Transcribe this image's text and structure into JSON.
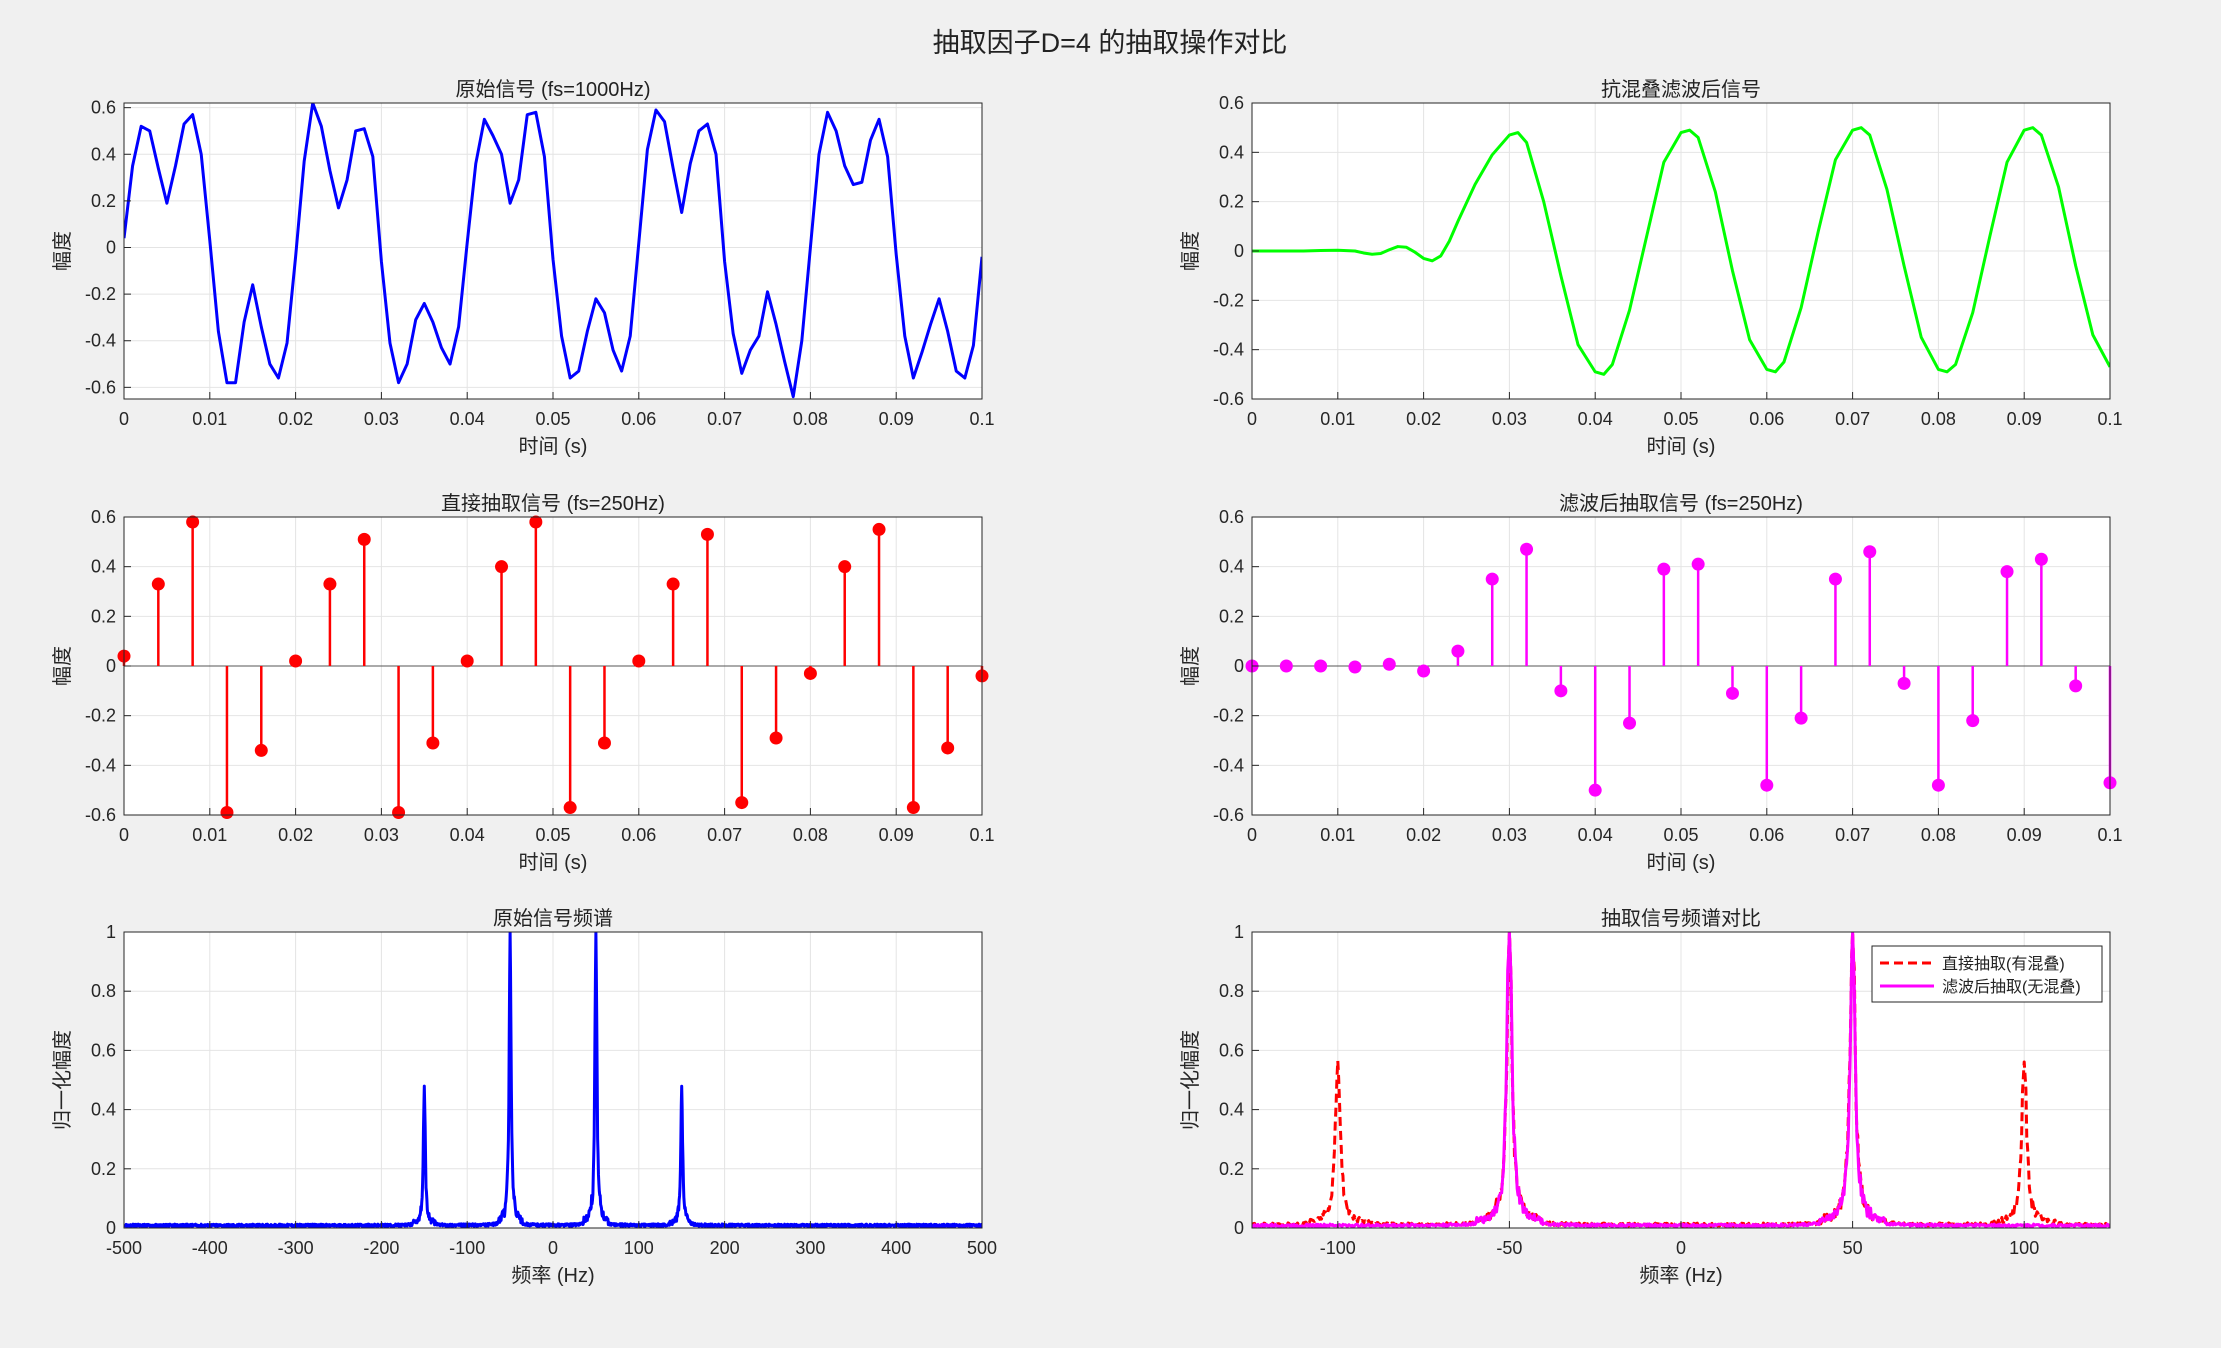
{
  "figure": {
    "title": "抽取因子D=4 的抽取操作对比"
  },
  "chart_data": [
    {
      "id": "p1",
      "type": "line",
      "title": "原始信号 (fs=1000Hz)",
      "xlabel": "时间 (s)",
      "ylabel": "幅度",
      "xlim": [
        0,
        0.1
      ],
      "ylim": [
        -0.65,
        0.62
      ],
      "xticks": [
        0,
        0.01,
        0.02,
        0.03,
        0.04,
        0.05,
        0.06,
        0.07,
        0.08,
        0.09,
        0.1
      ],
      "xticklabels": [
        "0",
        "0.01",
        "0.02",
        "0.03",
        "0.04",
        "0.05",
        "0.06",
        "0.07",
        "0.08",
        "0.09",
        "0.1"
      ],
      "yticks": [
        -0.6,
        -0.4,
        -0.2,
        0,
        0.2,
        0.4,
        0.6
      ],
      "yticklabels": [
        "-0.6",
        "-0.4",
        "-0.2",
        "0",
        "0.2",
        "0.4",
        "0.6"
      ],
      "grid": true,
      "series": [
        {
          "color": "#0000ff",
          "x": [
            0,
            0.001,
            0.002,
            0.003,
            0.004,
            0.005,
            0.006,
            0.007,
            0.008,
            0.009,
            0.01,
            0.011,
            0.012,
            0.013,
            0.014,
            0.015,
            0.016,
            0.017,
            0.018,
            0.019,
            0.02,
            0.021,
            0.022,
            0.023,
            0.024,
            0.025,
            0.026,
            0.027,
            0.028,
            0.029,
            0.03,
            0.031,
            0.032,
            0.033,
            0.034,
            0.035,
            0.036,
            0.037,
            0.038,
            0.039,
            0.04,
            0.041,
            0.042,
            0.043,
            0.044,
            0.045,
            0.046,
            0.047,
            0.048,
            0.049,
            0.05,
            0.051,
            0.052,
            0.053,
            0.054,
            0.055,
            0.056,
            0.057,
            0.058,
            0.059,
            0.06,
            0.061,
            0.062,
            0.063,
            0.064,
            0.065,
            0.066,
            0.067,
            0.068,
            0.069,
            0.07,
            0.071,
            0.072,
            0.073,
            0.074,
            0.075,
            0.076,
            0.077,
            0.078,
            0.079,
            0.08,
            0.081,
            0.082,
            0.083,
            0.084,
            0.085,
            0.086,
            0.087,
            0.088,
            0.089,
            0.09,
            0.091,
            0.092,
            0.093,
            0.094,
            0.095,
            0.096,
            0.097,
            0.098,
            0.099,
            0.1
          ],
          "y": [
            0.04,
            0.35,
            0.52,
            0.5,
            0.34,
            0.19,
            0.35,
            0.53,
            0.57,
            0.4,
            0.03,
            -0.36,
            -0.58,
            -0.58,
            -0.32,
            -0.16,
            -0.34,
            -0.5,
            -0.56,
            -0.41,
            -0.04,
            0.37,
            0.62,
            0.52,
            0.33,
            0.17,
            0.29,
            0.5,
            0.51,
            0.39,
            -0.06,
            -0.41,
            -0.58,
            -0.5,
            -0.31,
            -0.24,
            -0.32,
            -0.43,
            -0.5,
            -0.34,
            0.02,
            0.36,
            0.55,
            0.48,
            0.4,
            0.19,
            0.29,
            0.57,
            0.58,
            0.39,
            -0.05,
            -0.38,
            -0.56,
            -0.53,
            -0.36,
            -0.22,
            -0.28,
            -0.44,
            -0.53,
            -0.38,
            0.02,
            0.42,
            0.59,
            0.54,
            0.34,
            0.15,
            0.36,
            0.5,
            0.53,
            0.4,
            -0.06,
            -0.37,
            -0.54,
            -0.44,
            -0.38,
            -0.19,
            -0.33,
            -0.49,
            -0.64,
            -0.4,
            0.0,
            0.4,
            0.58,
            0.5,
            0.35,
            0.27,
            0.28,
            0.46,
            0.55,
            0.39,
            -0.03,
            -0.38,
            -0.56,
            -0.45,
            -0.33,
            -0.22,
            -0.36,
            -0.53,
            -0.56,
            -0.42,
            -0.04
          ]
        }
      ]
    },
    {
      "id": "p2",
      "type": "line",
      "title": "抗混叠滤波后信号",
      "xlabel": "时间 (s)",
      "ylabel": "幅度",
      "xlim": [
        0,
        0.1
      ],
      "ylim": [
        -0.6,
        0.6
      ],
      "xticks": [
        0,
        0.01,
        0.02,
        0.03,
        0.04,
        0.05,
        0.06,
        0.07,
        0.08,
        0.09,
        0.1
      ],
      "xticklabels": [
        "0",
        "0.01",
        "0.02",
        "0.03",
        "0.04",
        "0.05",
        "0.06",
        "0.07",
        "0.08",
        "0.09",
        "0.1"
      ],
      "yticks": [
        -0.6,
        -0.4,
        -0.2,
        0,
        0.2,
        0.4,
        0.6
      ],
      "yticklabels": [
        "-0.6",
        "-0.4",
        "-0.2",
        "0",
        "0.2",
        "0.4",
        "0.6"
      ],
      "grid": true,
      "series": [
        {
          "color": "#00ff00",
          "x": [
            0,
            0.002,
            0.004,
            0.006,
            0.008,
            0.01,
            0.012,
            0.013,
            0.014,
            0.015,
            0.016,
            0.017,
            0.018,
            0.019,
            0.02,
            0.021,
            0.022,
            0.023,
            0.024,
            0.026,
            0.028,
            0.03,
            0.031,
            0.032,
            0.034,
            0.036,
            0.038,
            0.04,
            0.041,
            0.042,
            0.044,
            0.046,
            0.048,
            0.05,
            0.051,
            0.052,
            0.054,
            0.056,
            0.058,
            0.06,
            0.061,
            0.062,
            0.064,
            0.066,
            0.068,
            0.07,
            0.071,
            0.072,
            0.074,
            0.076,
            0.078,
            0.08,
            0.081,
            0.082,
            0.084,
            0.086,
            0.088,
            0.09,
            0.091,
            0.092,
            0.094,
            0.096,
            0.098,
            0.1
          ],
          "y": [
            0.0,
            0.0,
            0.0,
            0.0,
            0.002,
            0.003,
            0.0,
            -0.008,
            -0.013,
            -0.01,
            0.005,
            0.018,
            0.015,
            -0.005,
            -0.03,
            -0.04,
            -0.02,
            0.04,
            0.12,
            0.27,
            0.39,
            0.47,
            0.48,
            0.44,
            0.2,
            -0.1,
            -0.38,
            -0.49,
            -0.5,
            -0.46,
            -0.24,
            0.06,
            0.36,
            0.48,
            0.49,
            0.46,
            0.24,
            -0.08,
            -0.36,
            -0.48,
            -0.49,
            -0.45,
            -0.23,
            0.08,
            0.37,
            0.49,
            0.5,
            0.47,
            0.25,
            -0.06,
            -0.35,
            -0.48,
            -0.49,
            -0.46,
            -0.25,
            0.06,
            0.36,
            0.49,
            0.5,
            0.47,
            0.26,
            -0.06,
            -0.34,
            -0.47
          ]
        }
      ]
    },
    {
      "id": "p3",
      "type": "stem",
      "title": "直接抽取信号 (fs=250Hz)",
      "xlabel": "时间 (s)",
      "ylabel": "幅度",
      "xlim": [
        0,
        0.1
      ],
      "ylim": [
        -0.6,
        0.6
      ],
      "xticks": [
        0,
        0.01,
        0.02,
        0.03,
        0.04,
        0.05,
        0.06,
        0.07,
        0.08,
        0.09,
        0.1
      ],
      "xticklabels": [
        "0",
        "0.01",
        "0.02",
        "0.03",
        "0.04",
        "0.05",
        "0.06",
        "0.07",
        "0.08",
        "0.09",
        "0.1"
      ],
      "yticks": [
        -0.6,
        -0.4,
        -0.2,
        0,
        0.2,
        0.4,
        0.6
      ],
      "yticklabels": [
        "-0.6",
        "-0.4",
        "-0.2",
        "0",
        "0.2",
        "0.4",
        "0.6"
      ],
      "grid": true,
      "series": [
        {
          "color": "#ff0000",
          "x": [
            0,
            0.004,
            0.008,
            0.012,
            0.016,
            0.02,
            0.024,
            0.028,
            0.032,
            0.036,
            0.04,
            0.044,
            0.048,
            0.052,
            0.056,
            0.06,
            0.064,
            0.068,
            0.072,
            0.076,
            0.08,
            0.084,
            0.088,
            0.092,
            0.096,
            0.1
          ],
          "y": [
            0.04,
            0.33,
            0.58,
            -0.59,
            -0.34,
            0.02,
            0.33,
            0.51,
            -0.59,
            -0.31,
            0.02,
            0.4,
            0.58,
            -0.57,
            -0.31,
            0.02,
            0.33,
            0.53,
            -0.55,
            -0.29,
            -0.03,
            0.4,
            0.55,
            -0.57,
            -0.33,
            -0.04
          ]
        }
      ]
    },
    {
      "id": "p4",
      "type": "stem",
      "title": "滤波后抽取信号 (fs=250Hz)",
      "xlabel": "时间 (s)",
      "ylabel": "幅度",
      "xlim": [
        0,
        0.1
      ],
      "ylim": [
        -0.6,
        0.6
      ],
      "xticks": [
        0,
        0.01,
        0.02,
        0.03,
        0.04,
        0.05,
        0.06,
        0.07,
        0.08,
        0.09,
        0.1
      ],
      "xticklabels": [
        "0",
        "0.01",
        "0.02",
        "0.03",
        "0.04",
        "0.05",
        "0.06",
        "0.07",
        "0.08",
        "0.09",
        "0.1"
      ],
      "yticks": [
        -0.6,
        -0.4,
        -0.2,
        0,
        0.2,
        0.4,
        0.6
      ],
      "yticklabels": [
        "-0.6",
        "-0.4",
        "-0.2",
        "0",
        "0.2",
        "0.4",
        "0.6"
      ],
      "grid": true,
      "series": [
        {
          "color": "#ff00ff",
          "x": [
            0,
            0.004,
            0.008,
            0.012,
            0.016,
            0.02,
            0.024,
            0.028,
            0.032,
            0.036,
            0.04,
            0.044,
            0.048,
            0.052,
            0.056,
            0.06,
            0.064,
            0.068,
            0.072,
            0.076,
            0.08,
            0.084,
            0.088,
            0.092,
            0.096,
            0.1
          ],
          "y": [
            0.0,
            0.0,
            0.0,
            -0.004,
            0.007,
            -0.02,
            0.06,
            0.35,
            0.47,
            -0.1,
            -0.5,
            -0.23,
            0.39,
            0.41,
            -0.11,
            -0.48,
            -0.21,
            0.35,
            0.46,
            -0.07,
            -0.48,
            -0.22,
            0.38,
            0.43,
            -0.08,
            -0.47
          ]
        }
      ]
    },
    {
      "id": "p5",
      "type": "line",
      "title": "原始信号频谱",
      "xlabel": "频率 (Hz)",
      "ylabel": "归一化幅度",
      "xlim": [
        -500,
        500
      ],
      "ylim": [
        0,
        1
      ],
      "xticks": [
        -500,
        -400,
        -300,
        -200,
        -100,
        0,
        100,
        200,
        300,
        400,
        500
      ],
      "xticklabels": [
        "-500",
        "-400",
        "-300",
        "-200",
        "-100",
        "0",
        "100",
        "200",
        "300",
        "400",
        "500"
      ],
      "yticks": [
        0,
        0.2,
        0.4,
        0.6,
        0.8,
        1
      ],
      "yticklabels": [
        "0",
        "0.2",
        "0.4",
        "0.6",
        "0.8",
        "1"
      ],
      "grid": true,
      "series": [
        {
          "color": "#0000ff",
          "peaks": [
            {
              "f": -150,
              "a": 0.47,
              "w": 1.2
            },
            {
              "f": -50,
              "a": 1.0,
              "w": 1.2
            },
            {
              "f": 50,
              "a": 1.0,
              "w": 1.2
            },
            {
              "f": 150,
              "a": 0.47,
              "w": 1.2
            }
          ],
          "floor": 0.01
        }
      ]
    },
    {
      "id": "p6",
      "type": "line",
      "title": "抽取信号频谱对比",
      "xlabel": "频率 (Hz)",
      "ylabel": "归一化幅度",
      "xlim": [
        -125,
        125
      ],
      "ylim": [
        0,
        1
      ],
      "xticks": [
        -100,
        -50,
        0,
        50,
        100
      ],
      "xticklabels": [
        "-100",
        "-50",
        "0",
        "50",
        "100"
      ],
      "yticks": [
        0,
        0.2,
        0.4,
        0.6,
        0.8,
        1
      ],
      "yticklabels": [
        "0",
        "0.2",
        "0.4",
        "0.6",
        "0.8",
        "1"
      ],
      "grid": true,
      "legend": {
        "position": "top-right",
        "entries": [
          "直接抽取(有混叠)",
          "滤波后抽取(无混叠)"
        ]
      },
      "series": [
        {
          "name": "直接抽取(有混叠)",
          "color": "#ff0000",
          "dashed": true,
          "peaks": [
            {
              "f": -100,
              "a": 0.55,
              "w": 0.8
            },
            {
              "f": -50,
              "a": 1.0,
              "w": 0.8
            },
            {
              "f": 50,
              "a": 1.0,
              "w": 0.8
            },
            {
              "f": 100,
              "a": 0.55,
              "w": 0.8
            }
          ],
          "floor": 0.012
        },
        {
          "name": "滤波后抽取(无混叠)",
          "color": "#ff00ff",
          "dashed": false,
          "peaks": [
            {
              "f": -50,
              "a": 1.0,
              "w": 0.8
            },
            {
              "f": 50,
              "a": 1.0,
              "w": 0.8
            }
          ],
          "floor": 0.01
        }
      ]
    }
  ]
}
